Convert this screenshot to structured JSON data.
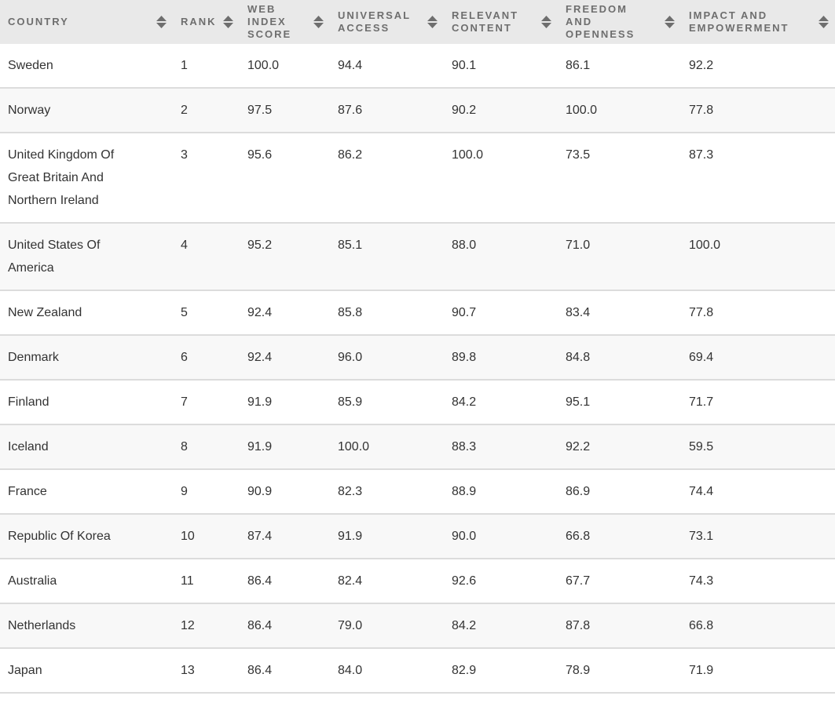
{
  "table": {
    "columns": [
      {
        "key": "country",
        "label": "COUNTRY"
      },
      {
        "key": "rank",
        "label": "RANK"
      },
      {
        "key": "web_index_score",
        "label": "WEB INDEX SCORE"
      },
      {
        "key": "universal_access",
        "label": "UNIVERSAL ACCESS"
      },
      {
        "key": "relevant_content",
        "label": "RELEVANT CONTENT"
      },
      {
        "key": "freedom_and_openness",
        "label": "FREEDOM AND OPENNESS"
      },
      {
        "key": "impact_and_empowerment",
        "label": "IMPACT AND EMPOWERMENT"
      }
    ],
    "sort_icon_name": "sort-updown-icon",
    "rows": [
      {
        "country": "Sweden",
        "rank": "1",
        "web_index_score": "100.0",
        "universal_access": "94.4",
        "relevant_content": "90.1",
        "freedom_and_openness": "86.1",
        "impact_and_empowerment": "92.2"
      },
      {
        "country": "Norway",
        "rank": "2",
        "web_index_score": "97.5",
        "universal_access": "87.6",
        "relevant_content": "90.2",
        "freedom_and_openness": "100.0",
        "impact_and_empowerment": "77.8"
      },
      {
        "country": "United Kingdom Of Great Britain And Northern Ireland",
        "rank": "3",
        "web_index_score": "95.6",
        "universal_access": "86.2",
        "relevant_content": "100.0",
        "freedom_and_openness": "73.5",
        "impact_and_empowerment": "87.3"
      },
      {
        "country": "United States Of America",
        "rank": "4",
        "web_index_score": "95.2",
        "universal_access": "85.1",
        "relevant_content": "88.0",
        "freedom_and_openness": "71.0",
        "impact_and_empowerment": "100.0"
      },
      {
        "country": "New Zealand",
        "rank": "5",
        "web_index_score": "92.4",
        "universal_access": "85.8",
        "relevant_content": "90.7",
        "freedom_and_openness": "83.4",
        "impact_and_empowerment": "77.8"
      },
      {
        "country": "Denmark",
        "rank": "6",
        "web_index_score": "92.4",
        "universal_access": "96.0",
        "relevant_content": "89.8",
        "freedom_and_openness": "84.8",
        "impact_and_empowerment": "69.4"
      },
      {
        "country": "Finland",
        "rank": "7",
        "web_index_score": "91.9",
        "universal_access": "85.9",
        "relevant_content": "84.2",
        "freedom_and_openness": "95.1",
        "impact_and_empowerment": "71.7"
      },
      {
        "country": "Iceland",
        "rank": "8",
        "web_index_score": "91.9",
        "universal_access": "100.0",
        "relevant_content": "88.3",
        "freedom_and_openness": "92.2",
        "impact_and_empowerment": "59.5"
      },
      {
        "country": "France",
        "rank": "9",
        "web_index_score": "90.9",
        "universal_access": "82.3",
        "relevant_content": "88.9",
        "freedom_and_openness": "86.9",
        "impact_and_empowerment": "74.4"
      },
      {
        "country": "Republic Of Korea",
        "rank": "10",
        "web_index_score": "87.4",
        "universal_access": "91.9",
        "relevant_content": "90.0",
        "freedom_and_openness": "66.8",
        "impact_and_empowerment": "73.1"
      },
      {
        "country": "Australia",
        "rank": "11",
        "web_index_score": "86.4",
        "universal_access": "82.4",
        "relevant_content": "92.6",
        "freedom_and_openness": "67.7",
        "impact_and_empowerment": "74.3"
      },
      {
        "country": "Netherlands",
        "rank": "12",
        "web_index_score": "86.4",
        "universal_access": "79.0",
        "relevant_content": "84.2",
        "freedom_and_openness": "87.8",
        "impact_and_empowerment": "66.8"
      },
      {
        "country": "Japan",
        "rank": "13",
        "web_index_score": "86.4",
        "universal_access": "84.0",
        "relevant_content": "82.9",
        "freedom_and_openness": "78.9",
        "impact_and_empowerment": "71.9"
      }
    ]
  },
  "colors": {
    "header_bg": "#e9e9e9",
    "header_text": "#6e6e6e",
    "sort_icon": "#6e6e6e",
    "row_alt_bg": "#f8f8f8",
    "row_border": "#dcdcdc",
    "cell_text": "#333333"
  }
}
